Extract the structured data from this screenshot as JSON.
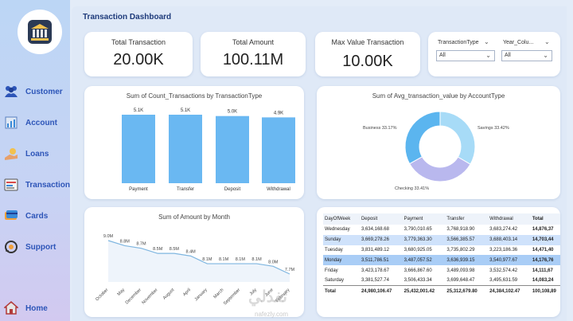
{
  "sidebar": {
    "items": [
      {
        "label": "Customer",
        "icon": "users-icon"
      },
      {
        "label": "Account",
        "icon": "account-icon"
      },
      {
        "label": "Loans",
        "icon": "loans-icon"
      },
      {
        "label": "Transaction",
        "icon": "transaction-icon"
      },
      {
        "label": "Cards",
        "icon": "cards-icon"
      },
      {
        "label": "Support",
        "icon": "support-icon"
      }
    ],
    "home": {
      "label": "Home",
      "icon": "home-icon"
    }
  },
  "title": "Transaction Dashboard",
  "kpis": [
    {
      "label": "Total Transaction",
      "value": "20.00K"
    },
    {
      "label": "Total Amount",
      "value": "100.11M"
    },
    {
      "label": "Max Value Transaction",
      "value": "10.00K"
    }
  ],
  "filters": [
    {
      "label": "TransactionType",
      "value": "All"
    },
    {
      "label": "Year_Colu...",
      "value": "All"
    }
  ],
  "colors": {
    "accent": "#2d55b8",
    "bar": "#6ab8f2",
    "donut_light": "#a7dbf7",
    "donut_mid": "#5bb5ef",
    "donut_purple": "#b9b8ee"
  },
  "chart_data": [
    {
      "type": "bar",
      "title": "Sum of Count_Transactions by TransactionType",
      "categories": [
        "Payment",
        "Transfer",
        "Deposit",
        "Withdrawal"
      ],
      "values": [
        5100,
        5100,
        5000,
        4900
      ],
      "labels": [
        "5.1K",
        "5.1K",
        "5.0K",
        "4.9K"
      ]
    },
    {
      "type": "pie",
      "title": "Sum of Avg_transaction_value by AccountType",
      "categories": [
        "Savings",
        "Checking",
        "Business"
      ],
      "values": [
        33.42,
        33.41,
        33.17
      ],
      "labels": [
        "Savings 33.42%",
        "Checking 33.41%",
        "Business 33.17%"
      ]
    },
    {
      "type": "area",
      "title": "Sum of Amount by Month",
      "categories": [
        "October",
        "May",
        "December",
        "November",
        "August",
        "April",
        "January",
        "March",
        "September",
        "July",
        "June",
        "February"
      ],
      "values": [
        9.0,
        8.8,
        8.7,
        8.5,
        8.5,
        8.4,
        8.1,
        8.1,
        8.1,
        8.1,
        8.0,
        7.7
      ],
      "labels": [
        "9.0M",
        "8.8M",
        "8.7M",
        "8.5M",
        "8.5M",
        "8.4M",
        "8.1M",
        "8.1M",
        "8.1M",
        "8.1M",
        "8.0M",
        "7.7M"
      ]
    },
    {
      "type": "table",
      "columns": [
        "DayOfWeek",
        "Deposit",
        "Payment",
        "Transfer",
        "Withdrawal",
        "Total"
      ],
      "rows": [
        [
          "Wednesday",
          "3,634,168.68",
          "3,790,010.65",
          "3,768,918.90",
          "3,683,274.42",
          "14,876,37"
        ],
        [
          "Sunday",
          "3,669,278.26",
          "3,779,363.30",
          "3,566,385.57",
          "3,688,403.14",
          "14,703,44"
        ],
        [
          "Tuesday",
          "3,831,489.12",
          "3,680,925.05",
          "3,735,802.29",
          "3,223,186.36",
          "14,471,40"
        ],
        [
          "Monday",
          "3,511,786.51",
          "3,487,057.52",
          "3,636,939.15",
          "3,540,977.67",
          "14,176,76"
        ],
        [
          "Friday",
          "3,423,178.67",
          "3,666,867.60",
          "3,489,093.98",
          "3,532,574.42",
          "14,111,67"
        ],
        [
          "Saturday",
          "3,381,527.74",
          "3,506,433.34",
          "3,699,648.47",
          "3,495,631.59",
          "14,083,24"
        ],
        [
          "Total",
          "24,980,106.47",
          "25,432,001.42",
          "25,312,679.80",
          "24,384,102.47",
          "100,108,89"
        ]
      ]
    }
  ],
  "watermark": {
    "text": "تفدلي",
    "sub": "nafezly.com"
  }
}
